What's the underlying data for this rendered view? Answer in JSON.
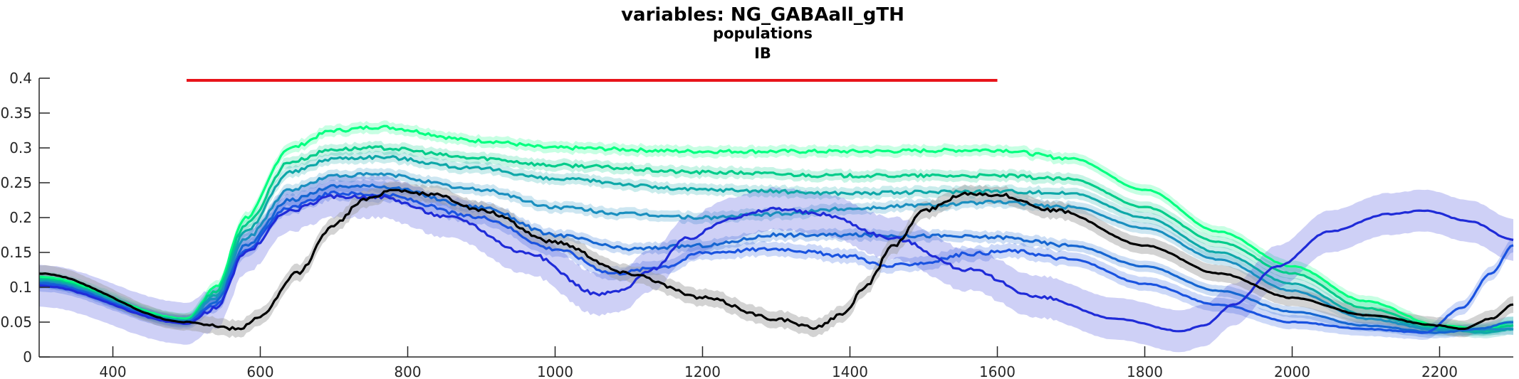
{
  "chart_data": {
    "type": "line",
    "title": "variables: NG_GABAall_gTH",
    "subtitle_lines": [
      "populations",
      "IB"
    ],
    "xlabel": "",
    "ylabel": "",
    "xlim": [
      300,
      2300
    ],
    "ylim": [
      0,
      0.4
    ],
    "x_ticks": [
      400,
      600,
      800,
      1000,
      1200,
      1400,
      1600,
      1800,
      2000,
      2200
    ],
    "y_ticks": [
      0,
      0.05,
      0.1,
      0.15,
      0.2,
      0.25,
      0.3,
      0.35,
      0.4
    ],
    "y_tick_labels": [
      "0",
      "0.05",
      "0.1",
      "0.15",
      "0.2",
      "0.25",
      "0.3",
      "0.35",
      "0.4"
    ],
    "grid": false,
    "legend": "none",
    "stimulus_bar": {
      "x": [
        500,
        1600
      ],
      "y": 0.397,
      "color": "#e8141a"
    },
    "series": [
      {
        "color": "#00ff80",
        "band": 0.008,
        "points": [
          [
            300,
            0.115
          ],
          [
            500,
            0.055
          ],
          [
            540,
            0.1
          ],
          [
            580,
            0.2
          ],
          [
            640,
            0.3
          ],
          [
            700,
            0.325
          ],
          [
            760,
            0.33
          ],
          [
            900,
            0.31
          ],
          [
            1000,
            0.3
          ],
          [
            1200,
            0.295
          ],
          [
            1400,
            0.295
          ],
          [
            1600,
            0.297
          ],
          [
            1700,
            0.285
          ],
          [
            1800,
            0.24
          ],
          [
            1900,
            0.18
          ],
          [
            2000,
            0.13
          ],
          [
            2100,
            0.08
          ],
          [
            2200,
            0.045
          ],
          [
            2260,
            0.04
          ],
          [
            2300,
            0.05
          ]
        ]
      },
      {
        "color": "#00cc8a",
        "band": 0.008,
        "points": [
          [
            300,
            0.112
          ],
          [
            500,
            0.053
          ],
          [
            540,
            0.095
          ],
          [
            580,
            0.19
          ],
          [
            640,
            0.28
          ],
          [
            700,
            0.298
          ],
          [
            760,
            0.3
          ],
          [
            900,
            0.285
          ],
          [
            1000,
            0.275
          ],
          [
            1200,
            0.265
          ],
          [
            1400,
            0.26
          ],
          [
            1600,
            0.26
          ],
          [
            1700,
            0.255
          ],
          [
            1800,
            0.215
          ],
          [
            1900,
            0.165
          ],
          [
            2000,
            0.12
          ],
          [
            2100,
            0.07
          ],
          [
            2200,
            0.042
          ],
          [
            2260,
            0.038
          ],
          [
            2300,
            0.045
          ]
        ]
      },
      {
        "color": "#0ea8a8",
        "band": 0.008,
        "points": [
          [
            300,
            0.11
          ],
          [
            500,
            0.052
          ],
          [
            540,
            0.09
          ],
          [
            580,
            0.18
          ],
          [
            640,
            0.265
          ],
          [
            700,
            0.285
          ],
          [
            760,
            0.287
          ],
          [
            900,
            0.27
          ],
          [
            1000,
            0.255
          ],
          [
            1200,
            0.24
          ],
          [
            1400,
            0.235
          ],
          [
            1600,
            0.238
          ],
          [
            1700,
            0.235
          ],
          [
            1800,
            0.2
          ],
          [
            1900,
            0.15
          ],
          [
            2000,
            0.105
          ],
          [
            2100,
            0.06
          ],
          [
            2200,
            0.04
          ],
          [
            2260,
            0.035
          ],
          [
            2300,
            0.04
          ]
        ]
      },
      {
        "color": "#1a8fbf",
        "band": 0.008,
        "points": [
          [
            300,
            0.108
          ],
          [
            500,
            0.051
          ],
          [
            540,
            0.085
          ],
          [
            580,
            0.17
          ],
          [
            640,
            0.24
          ],
          [
            700,
            0.26
          ],
          [
            760,
            0.262
          ],
          [
            900,
            0.24
          ],
          [
            1000,
            0.215
          ],
          [
            1100,
            0.205
          ],
          [
            1200,
            0.2
          ],
          [
            1300,
            0.205
          ],
          [
            1400,
            0.213
          ],
          [
            1500,
            0.218
          ],
          [
            1600,
            0.222
          ],
          [
            1700,
            0.215
          ],
          [
            1800,
            0.185
          ],
          [
            1900,
            0.14
          ],
          [
            2000,
            0.095
          ],
          [
            2100,
            0.055
          ],
          [
            2200,
            0.038
          ],
          [
            2300,
            0.04
          ]
        ]
      },
      {
        "color": "#1566d1",
        "band": 0.008,
        "points": [
          [
            300,
            0.106
          ],
          [
            500,
            0.05
          ],
          [
            540,
            0.08
          ],
          [
            580,
            0.16
          ],
          [
            640,
            0.225
          ],
          [
            700,
            0.245
          ],
          [
            760,
            0.245
          ],
          [
            900,
            0.215
          ],
          [
            1000,
            0.175
          ],
          [
            1100,
            0.155
          ],
          [
            1200,
            0.16
          ],
          [
            1300,
            0.175
          ],
          [
            1400,
            0.175
          ],
          [
            1500,
            0.174
          ],
          [
            1600,
            0.172
          ],
          [
            1700,
            0.16
          ],
          [
            1800,
            0.13
          ],
          [
            1900,
            0.095
          ],
          [
            2000,
            0.065
          ],
          [
            2100,
            0.045
          ],
          [
            2200,
            0.035
          ],
          [
            2250,
            0.04
          ],
          [
            2300,
            0.05
          ]
        ]
      },
      {
        "color": "#1a53e0",
        "band": 0.01,
        "points": [
          [
            300,
            0.104
          ],
          [
            500,
            0.05
          ],
          [
            540,
            0.075
          ],
          [
            580,
            0.155
          ],
          [
            640,
            0.215
          ],
          [
            700,
            0.235
          ],
          [
            760,
            0.233
          ],
          [
            900,
            0.2
          ],
          [
            1000,
            0.155
          ],
          [
            1080,
            0.12
          ],
          [
            1150,
            0.13
          ],
          [
            1200,
            0.15
          ],
          [
            1300,
            0.155
          ],
          [
            1400,
            0.145
          ],
          [
            1450,
            0.13
          ],
          [
            1500,
            0.135
          ],
          [
            1560,
            0.148
          ],
          [
            1620,
            0.152
          ],
          [
            1700,
            0.14
          ],
          [
            1800,
            0.105
          ],
          [
            1900,
            0.075
          ],
          [
            2000,
            0.05
          ],
          [
            2100,
            0.04
          ],
          [
            2180,
            0.035
          ],
          [
            2230,
            0.07
          ],
          [
            2270,
            0.12
          ],
          [
            2300,
            0.16
          ]
        ]
      },
      {
        "color": "#1f2bd8",
        "band": 0.03,
        "points": [
          [
            300,
            0.102
          ],
          [
            500,
            0.048
          ],
          [
            540,
            0.07
          ],
          [
            580,
            0.15
          ],
          [
            640,
            0.21
          ],
          [
            700,
            0.23
          ],
          [
            760,
            0.23
          ],
          [
            860,
            0.2
          ],
          [
            960,
            0.15
          ],
          [
            1060,
            0.09
          ],
          [
            1090,
            0.095
          ],
          [
            1130,
            0.125
          ],
          [
            1180,
            0.17
          ],
          [
            1240,
            0.2
          ],
          [
            1300,
            0.213
          ],
          [
            1360,
            0.205
          ],
          [
            1460,
            0.17
          ],
          [
            1560,
            0.125
          ],
          [
            1660,
            0.085
          ],
          [
            1760,
            0.055
          ],
          [
            1850,
            0.037
          ],
          [
            1880,
            0.045
          ],
          [
            1920,
            0.075
          ],
          [
            1980,
            0.13
          ],
          [
            2050,
            0.18
          ],
          [
            2130,
            0.205
          ],
          [
            2180,
            0.21
          ],
          [
            2240,
            0.195
          ],
          [
            2300,
            0.168
          ]
        ]
      },
      {
        "color": "#000000",
        "band": 0.012,
        "points": [
          [
            300,
            0.12
          ],
          [
            500,
            0.05
          ],
          [
            570,
            0.04
          ],
          [
            600,
            0.058
          ],
          [
            650,
            0.12
          ],
          [
            700,
            0.19
          ],
          [
            740,
            0.225
          ],
          [
            780,
            0.24
          ],
          [
            840,
            0.232
          ],
          [
            900,
            0.21
          ],
          [
            1000,
            0.165
          ],
          [
            1100,
            0.12
          ],
          [
            1200,
            0.085
          ],
          [
            1300,
            0.055
          ],
          [
            1350,
            0.042
          ],
          [
            1390,
            0.06
          ],
          [
            1420,
            0.1
          ],
          [
            1460,
            0.16
          ],
          [
            1500,
            0.21
          ],
          [
            1560,
            0.235
          ],
          [
            1600,
            0.233
          ],
          [
            1680,
            0.21
          ],
          [
            1800,
            0.16
          ],
          [
            1900,
            0.12
          ],
          [
            2000,
            0.085
          ],
          [
            2100,
            0.06
          ],
          [
            2200,
            0.045
          ],
          [
            2230,
            0.04
          ],
          [
            2270,
            0.055
          ],
          [
            2300,
            0.075
          ]
        ]
      }
    ]
  }
}
